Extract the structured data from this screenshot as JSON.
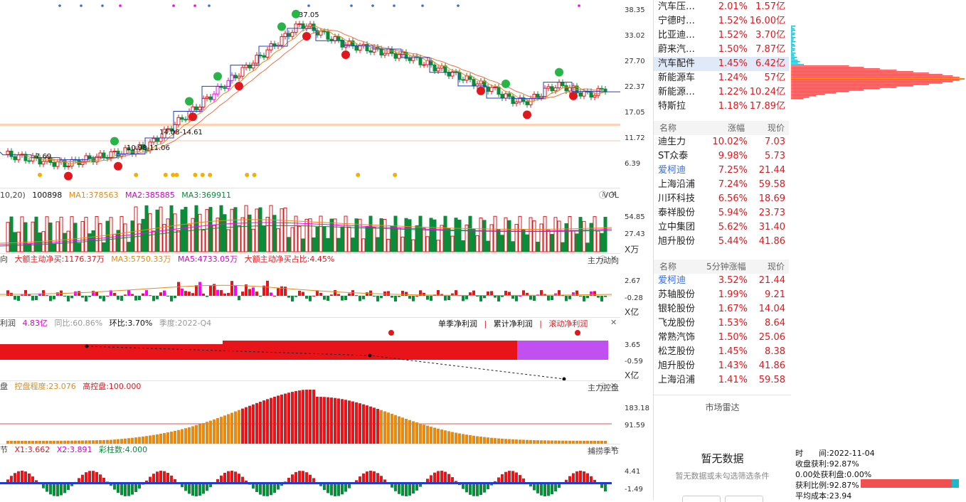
{
  "colors": {
    "up": "#e0181e",
    "down": "#0a8c3a",
    "magenta": "#ff00ff",
    "orange": "#e58a16",
    "blue": "#1f3ccc",
    "accent_link": "#3b6fd8"
  },
  "price_axis": [
    "38.35",
    "33.02",
    "27.70",
    "22.37",
    "17.05",
    "11.72",
    "6.39"
  ],
  "annotations": {
    "high": "37.05",
    "low": "7.69",
    "box1": "14.08-14.61",
    "box2": "10.98-11.06"
  },
  "vol_header": {
    "prefix": "10,20)",
    "value": "100898",
    "ma1": "MA1:378563",
    "ma2": "MA2:385885",
    "ma3": "MA3:369911",
    "name": "VOL"
  },
  "vol_axis": [
    "54.85",
    "27.43",
    "X万"
  ],
  "flow_header": {
    "prefix": "向",
    "main": "大额主动净买:1176.37万",
    "ma3": "MA3:5750.33万",
    "ma5": "MA5:4733.05万",
    "ratio": "大额主动净买占比:4.45%",
    "name": "主力动向"
  },
  "flow_axis": [
    "2.67",
    "-0.28",
    "X亿"
  ],
  "profit_header": {
    "prefix": "利润",
    "value": "4.83亿",
    "yoy": "同比:60.86%",
    "qoq": "环比:3.70%",
    "season": "季度:2022-Q4",
    "tab1": "单季净利润",
    "tab2": "累计净利润",
    "tab3": "滚动净利润"
  },
  "profit_axis": [
    "3.65",
    "-0.59",
    "X亿"
  ],
  "control_header": {
    "prefix": "盘",
    "degree": "控盘程度:23.076",
    "high": "高控盘:100.000",
    "name": "主力控盘"
  },
  "control_axis": [
    "183.18",
    "91.59"
  ],
  "catch_header": {
    "prefix": "节",
    "x1": "X1:3.662",
    "x2": "X2:3.891",
    "bars": "彩柱数:4.000",
    "name": "捕捞季节"
  },
  "catch_axis": [
    "4.41",
    "-1.49"
  ],
  "sector_table": [
    {
      "name": "汽车压…",
      "pct": "2.01%",
      "amt": "1.57亿"
    },
    {
      "name": "宁德时…",
      "pct": "1.52%",
      "amt": "16.00亿"
    },
    {
      "name": "比亚迪…",
      "pct": "1.52%",
      "amt": "3.70亿"
    },
    {
      "name": "蔚来汽…",
      "pct": "1.50%",
      "amt": "7.87亿"
    },
    {
      "name": "汽车配件",
      "pct": "1.45%",
      "amt": "6.42亿"
    },
    {
      "name": "新能源车",
      "pct": "1.24%",
      "amt": "57亿"
    },
    {
      "name": "新能源…",
      "pct": "1.22%",
      "amt": "10.24亿"
    },
    {
      "name": "特斯拉",
      "pct": "1.18%",
      "amt": "17.89亿"
    }
  ],
  "gainers_head": {
    "name": "名称",
    "pct": "涨幅",
    "price": "现价"
  },
  "gainers": [
    {
      "name": "迪生力",
      "pct": "10.02%",
      "price": "7.03"
    },
    {
      "name": "ST众泰",
      "pct": "9.98%",
      "price": "5.73"
    },
    {
      "name": "爱柯迪",
      "pct": "7.25%",
      "price": "21.44"
    },
    {
      "name": "上海沿浦",
      "pct": "7.24%",
      "price": "59.58"
    },
    {
      "name": "川环科技",
      "pct": "6.56%",
      "price": "18.69"
    },
    {
      "name": "泰祥股份",
      "pct": "5.94%",
      "price": "23.73"
    },
    {
      "name": "立中集团",
      "pct": "5.62%",
      "price": "31.40"
    },
    {
      "name": "旭升股份",
      "pct": "5.44%",
      "price": "41.86"
    }
  ],
  "fast_head": {
    "name": "名称",
    "pct": "5分钟涨幅",
    "price": "现价"
  },
  "fast": [
    {
      "name": "爱柯迪",
      "pct": "3.52%",
      "price": "21.44"
    },
    {
      "name": "苏轴股份",
      "pct": "1.99%",
      "price": "9.21"
    },
    {
      "name": "银轮股份",
      "pct": "1.67%",
      "price": "14.04"
    },
    {
      "name": "飞龙股份",
      "pct": "1.53%",
      "price": "8.64"
    },
    {
      "name": "常熟汽饰",
      "pct": "1.50%",
      "price": "25.06"
    },
    {
      "name": "松芝股份",
      "pct": "1.45%",
      "price": "8.38"
    },
    {
      "name": "旭升股份",
      "pct": "1.43%",
      "price": "41.86"
    },
    {
      "name": "上海沿浦",
      "pct": "1.41%",
      "price": "59.58"
    }
  ],
  "radar": {
    "title": "市场雷达",
    "empty_title": "暂无数据",
    "empty_sub": "暂无数据或未勾选筛选条件"
  },
  "chip_info": {
    "date": "时　　间:2022-11-04",
    "profit": "收盘获利:92.87%",
    "zero": "0.00处获利盘:0.00%",
    "ratio_label": "获利比例:92.87%",
    "avg": "平均成本:23.94",
    "ratio_value": 0.9287
  }
}
